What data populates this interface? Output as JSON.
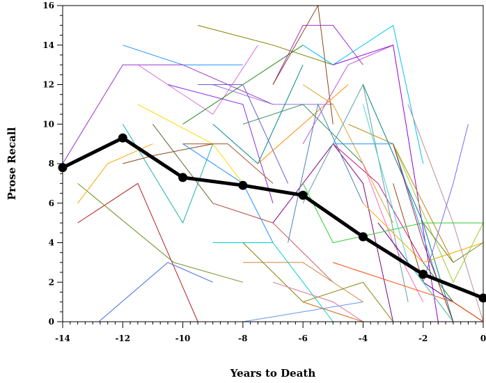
{
  "chart_data": {
    "type": "line",
    "xlabel": "Years to Death",
    "ylabel": "Prose Recall",
    "xlim": [
      -14,
      0
    ],
    "ylim": [
      0,
      16
    ],
    "xticks": [
      -14,
      -12,
      -10,
      -8,
      -6,
      -4,
      -2,
      0
    ],
    "yticks": [
      0,
      2,
      4,
      6,
      8,
      10,
      12,
      14,
      16
    ],
    "grid": false,
    "mean_series": {
      "color": "#000000",
      "x": [
        -14,
        -12,
        -10,
        -8,
        -6,
        -4,
        -2,
        0
      ],
      "y": [
        7.8,
        9.3,
        7.3,
        6.9,
        6.4,
        4.3,
        2.4,
        1.2
      ]
    },
    "individual_series": [
      {
        "color": "#1e90ff",
        "x": [
          -12,
          -10,
          -8
        ],
        "y": [
          14,
          13,
          13
        ]
      },
      {
        "color": "#9932cc",
        "x": [
          -14,
          -12,
          -10,
          -7
        ],
        "y": [
          8,
          13,
          13,
          11
        ]
      },
      {
        "color": "#808000",
        "x": [
          -9.5,
          -7,
          -5
        ],
        "y": [
          15,
          14,
          13
        ]
      },
      {
        "color": "#8b4513",
        "x": [
          -12,
          -11,
          -9
        ],
        "y": [
          8,
          8.4,
          9
        ]
      },
      {
        "color": "#b22222",
        "x": [
          -13.5,
          -11.5,
          -9.5
        ],
        "y": [
          5,
          7,
          0
        ]
      },
      {
        "color": "#6b8e23",
        "x": [
          -13.5,
          -10.3,
          -8
        ],
        "y": [
          7,
          3,
          2
        ]
      },
      {
        "color": "#4169e1",
        "x": [
          -12.8,
          -10.5,
          -9
        ],
        "y": [
          0,
          3,
          2
        ]
      },
      {
        "color": "#ffa500",
        "x": [
          -13.5,
          -12.5,
          -11
        ],
        "y": [
          6,
          8,
          9
        ]
      },
      {
        "color": "#20b2aa",
        "x": [
          -12,
          -10,
          -9
        ],
        "y": [
          10,
          5,
          9
        ]
      },
      {
        "color": "#da70d6",
        "x": [
          -11.5,
          -9,
          -7.5
        ],
        "y": [
          13,
          10.5,
          14
        ]
      },
      {
        "color": "#556b2f",
        "x": [
          -11,
          -9,
          -7
        ],
        "y": [
          10,
          6,
          5
        ]
      },
      {
        "color": "#8a2be2",
        "x": [
          -10.5,
          -8,
          -7
        ],
        "y": [
          12,
          11,
          6
        ]
      },
      {
        "color": "#228b22",
        "x": [
          -10,
          -8,
          -6
        ],
        "y": [
          10,
          12,
          14
        ]
      },
      {
        "color": "#1e90ff",
        "x": [
          -10,
          -8,
          -7
        ],
        "y": [
          9,
          7,
          4
        ]
      },
      {
        "color": "#ffd700",
        "x": [
          -11.5,
          -9,
          -8
        ],
        "y": [
          11,
          9,
          7
        ]
      },
      {
        "color": "#9370db",
        "x": [
          -9,
          -7,
          -5
        ],
        "y": [
          12,
          11,
          11
        ]
      },
      {
        "color": "#008b8b",
        "x": [
          -9,
          -7.5,
          -6
        ],
        "y": [
          10,
          8,
          13
        ]
      },
      {
        "color": "#a0522d",
        "x": [
          -10,
          -8.5,
          -7
        ],
        "y": [
          9,
          9,
          7
        ]
      },
      {
        "color": "#6a5acd",
        "x": [
          -9.5,
          -8,
          -6.5
        ],
        "y": [
          12,
          12,
          7
        ]
      },
      {
        "color": "#cd5c5c",
        "x": [
          -9,
          -7,
          -5
        ],
        "y": [
          6,
          5,
          2
        ]
      },
      {
        "color": "#9932cc",
        "x": [
          -7,
          -6,
          -5,
          -4
        ],
        "y": [
          12,
          15,
          15,
          13
        ]
      },
      {
        "color": "#8b4513",
        "x": [
          -7,
          -5.5,
          -5
        ],
        "y": [
          12,
          16,
          10
        ]
      },
      {
        "color": "#ff8c00",
        "x": [
          -7.5,
          -6,
          -4.5
        ],
        "y": [
          8,
          10,
          12
        ]
      },
      {
        "color": "#00bfff",
        "x": [
          -6,
          -5,
          -3,
          -2
        ],
        "y": [
          14,
          13,
          15,
          8
        ]
      },
      {
        "color": "#ba55d3",
        "x": [
          -6,
          -4.5,
          -3
        ],
        "y": [
          9,
          13,
          14
        ]
      },
      {
        "color": "#2e8b57",
        "x": [
          -8,
          -6,
          -4
        ],
        "y": [
          10,
          11,
          8
        ]
      },
      {
        "color": "#800080",
        "x": [
          -7,
          -5,
          -4,
          -3
        ],
        "y": [
          5,
          9,
          7,
          0
        ]
      },
      {
        "color": "#4682b4",
        "x": [
          -6.5,
          -5.5,
          -4
        ],
        "y": [
          4,
          11,
          6
        ]
      },
      {
        "color": "#daa520",
        "x": [
          -6,
          -5,
          -3
        ],
        "y": [
          12,
          11,
          5
        ]
      },
      {
        "color": "#c71585",
        "x": [
          -5,
          -3.5,
          -2
        ],
        "y": [
          9,
          7,
          3
        ]
      },
      {
        "color": "#5f9ea0",
        "x": [
          -6,
          -4,
          -2.5
        ],
        "y": [
          6,
          12,
          1
        ]
      },
      {
        "color": "#9400d3",
        "x": [
          -5,
          -3,
          -1.5
        ],
        "y": [
          13,
          14,
          0
        ]
      },
      {
        "color": "#b8860b",
        "x": [
          -4.5,
          -3,
          -1
        ],
        "y": [
          10,
          9,
          3
        ]
      },
      {
        "color": "#008080",
        "x": [
          -4,
          -2,
          -1
        ],
        "y": [
          12,
          5,
          0
        ]
      },
      {
        "color": "#ff69b4",
        "x": [
          -4,
          -3,
          -2
        ],
        "y": [
          8,
          4,
          1
        ]
      },
      {
        "color": "#1e90ff",
        "x": [
          -5,
          -3,
          -1.5
        ],
        "y": [
          9,
          9,
          2
        ]
      },
      {
        "color": "#ffa500",
        "x": [
          -4,
          -2,
          0
        ],
        "y": [
          6,
          3,
          4
        ]
      },
      {
        "color": "#9acd32",
        "x": [
          -3,
          -1,
          0
        ],
        "y": [
          9,
          2,
          5
        ]
      },
      {
        "color": "#8b4513",
        "x": [
          -3,
          -2,
          -1
        ],
        "y": [
          7,
          2,
          0
        ]
      },
      {
        "color": "#bc8f8f",
        "x": [
          -2.5,
          -1,
          0
        ],
        "y": [
          11,
          5,
          0
        ]
      },
      {
        "color": "#4b0082",
        "x": [
          -3.5,
          -2,
          0
        ],
        "y": [
          5,
          2,
          0
        ]
      },
      {
        "color": "#7b68ee",
        "x": [
          -2,
          -1,
          -0.5
        ],
        "y": [
          2,
          7,
          10
        ]
      },
      {
        "color": "#228b22",
        "x": [
          -2,
          -1,
          0
        ],
        "y": [
          3,
          1,
          0
        ]
      },
      {
        "color": "#cd853f",
        "x": [
          -8,
          -6,
          -4
        ],
        "y": [
          3,
          3,
          1
        ]
      },
      {
        "color": "#00ced1",
        "x": [
          -9,
          -7,
          -5
        ],
        "y": [
          4,
          4,
          0
        ]
      },
      {
        "color": "#808000",
        "x": [
          -8,
          -6,
          -4,
          -3
        ],
        "y": [
          4,
          1,
          2,
          0
        ]
      },
      {
        "color": "#db7093",
        "x": [
          -7,
          -5,
          -4
        ],
        "y": [
          2,
          1,
          0
        ]
      },
      {
        "color": "#6495ed",
        "x": [
          -10,
          -8,
          -6,
          -4
        ],
        "y": [
          0,
          0,
          0.5,
          1
        ]
      },
      {
        "color": "#d2691e",
        "x": [
          -6,
          -4,
          -2,
          0
        ],
        "y": [
          1,
          0,
          0,
          0
        ]
      },
      {
        "color": "#32cd32",
        "x": [
          -6,
          -5,
          -2,
          0
        ],
        "y": [
          7,
          4,
          5,
          5
        ]
      },
      {
        "color": "#ff4500",
        "x": [
          -5,
          -3,
          -1,
          0
        ],
        "y": [
          3,
          2,
          1,
          0
        ]
      },
      {
        "color": "#48d1cc",
        "x": [
          -4,
          -2.5,
          -1
        ],
        "y": [
          11,
          3,
          0
        ]
      },
      {
        "color": "#a52a2a",
        "x": [
          -3,
          -2,
          -1
        ],
        "y": [
          9,
          4,
          0
        ]
      },
      {
        "color": "#6b8e23",
        "x": [
          -2,
          -1,
          0
        ],
        "y": [
          5,
          3,
          4
        ]
      }
    ]
  }
}
